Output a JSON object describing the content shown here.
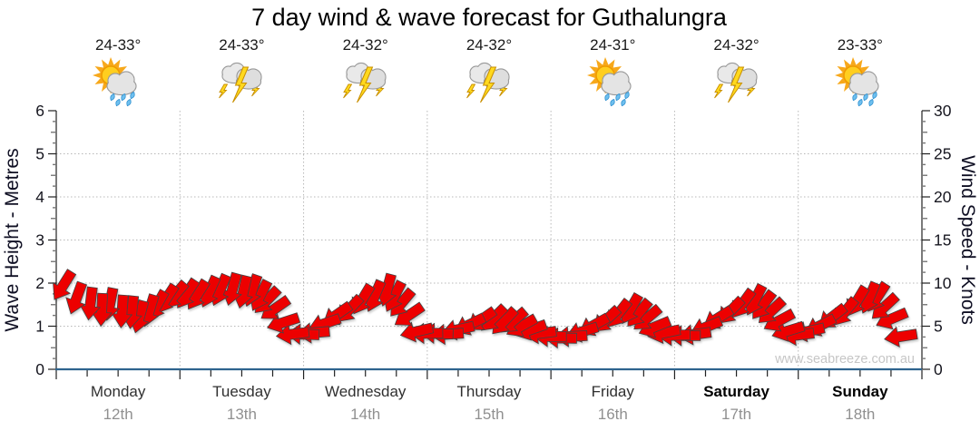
{
  "title": "7 day wind & wave forecast for Guthalungra",
  "watermark": "www.seabreeze.com.au",
  "colors": {
    "arrow": "#ED0000",
    "arrow_outline": "#444444",
    "baseline": "#2e648e",
    "grid": "#b8b8b8",
    "axis": "#222222",
    "tick_label": "#16161f",
    "axis_title": "#0f0f23",
    "weekday": "#303030",
    "weekday_weekend": "#000000",
    "date": "#909090",
    "watermark": "#c6c6c6",
    "temp": "#1a1a1a"
  },
  "days": [
    {
      "name": "Monday",
      "date": "12th",
      "temp": "24-33°",
      "icon": "sun-cloud-rain",
      "bold": false
    },
    {
      "name": "Tuesday",
      "date": "13th",
      "temp": "24-33°",
      "icon": "storm",
      "bold": false
    },
    {
      "name": "Wednesday",
      "date": "14th",
      "temp": "24-32°",
      "icon": "storm",
      "bold": false
    },
    {
      "name": "Thursday",
      "date": "15th",
      "temp": "24-32°",
      "icon": "storm",
      "bold": false
    },
    {
      "name": "Friday",
      "date": "16th",
      "temp": "24-31°",
      "icon": "sun-cloud-rain",
      "bold": false
    },
    {
      "name": "Saturday",
      "date": "17th",
      "temp": "24-32°",
      "icon": "storm",
      "bold": true
    },
    {
      "name": "Sunday",
      "date": "18th",
      "temp": "23-33°",
      "icon": "sun-cloud-rain",
      "bold": true
    }
  ],
  "chart_data": {
    "type": "wind-arrow-timeseries",
    "title": "7 day wind & wave forecast for Guthalungra",
    "y_left": {
      "label": "Wave Height - Metres",
      "min": 0,
      "max": 6,
      "ticks": [
        0,
        1,
        2,
        3,
        4,
        5,
        6
      ],
      "minor_step": 0.25
    },
    "y_right": {
      "label": "Wind Speed - Knots",
      "min": 0,
      "max": 30,
      "ticks": [
        0,
        5,
        10,
        15,
        20,
        25,
        30
      ],
      "minor_step": 1.25
    },
    "x_axis": {
      "hours_total": 168,
      "tick_every_hours": 6,
      "day_boundary_every_hours": 24
    },
    "wave_height_m_flat": 0.05,
    "wind_arrows": [
      [
        3,
        11.3,
        212
      ],
      [
        5,
        10.0,
        200
      ],
      [
        7,
        9.5,
        187
      ],
      [
        9,
        8.8,
        183
      ],
      [
        11,
        9.4,
        191
      ],
      [
        13,
        8.6,
        184
      ],
      [
        15,
        8.5,
        186
      ],
      [
        17,
        7.9,
        195
      ],
      [
        19,
        8.6,
        197
      ],
      [
        21,
        9.0,
        209
      ],
      [
        23,
        9.7,
        213
      ],
      [
        25,
        10.0,
        220
      ],
      [
        27,
        10.3,
        213
      ],
      [
        29,
        10.2,
        212
      ],
      [
        31,
        10.7,
        204
      ],
      [
        33,
        10.9,
        203
      ],
      [
        35,
        11.1,
        195
      ],
      [
        37,
        10.8,
        193
      ],
      [
        39,
        10.9,
        199
      ],
      [
        41,
        10.2,
        207
      ],
      [
        43,
        9.3,
        224
      ],
      [
        45,
        8.1,
        235
      ],
      [
        47,
        6.0,
        252
      ],
      [
        49,
        4.3,
        263
      ],
      [
        51,
        4.0,
        272
      ],
      [
        53,
        4.4,
        265
      ],
      [
        55,
        5.9,
        251
      ],
      [
        57,
        7.4,
        235
      ],
      [
        59,
        8.3,
        223
      ],
      [
        61,
        9.7,
        211
      ],
      [
        63,
        10.2,
        203
      ],
      [
        65,
        11.0,
        195
      ],
      [
        67,
        10.1,
        207
      ],
      [
        69,
        9.1,
        220
      ],
      [
        71,
        7.3,
        236
      ],
      [
        73,
        4.8,
        257
      ],
      [
        75,
        4.2,
        269
      ],
      [
        77,
        4.1,
        272
      ],
      [
        79,
        4.2,
        266
      ],
      [
        81,
        5.0,
        258
      ],
      [
        83,
        6.0,
        244
      ],
      [
        85,
        6.8,
        235
      ],
      [
        87,
        7.2,
        225
      ],
      [
        89,
        6.9,
        223
      ],
      [
        91,
        6.8,
        229
      ],
      [
        93,
        5.9,
        241
      ],
      [
        95,
        5.2,
        251
      ],
      [
        97,
        4.4,
        263
      ],
      [
        99,
        3.8,
        270
      ],
      [
        101,
        3.6,
        271
      ],
      [
        103,
        3.9,
        267
      ],
      [
        105,
        4.9,
        253
      ],
      [
        107,
        6.0,
        241
      ],
      [
        109,
        7.0,
        227
      ],
      [
        111,
        7.9,
        218
      ],
      [
        113,
        8.6,
        210
      ],
      [
        115,
        7.9,
        220
      ],
      [
        117,
        7.1,
        230
      ],
      [
        119,
        5.6,
        248
      ],
      [
        121,
        4.6,
        258
      ],
      [
        123,
        4.0,
        268
      ],
      [
        125,
        3.9,
        270
      ],
      [
        127,
        4.3,
        262
      ],
      [
        129,
        5.6,
        248
      ],
      [
        131,
        6.9,
        238
      ],
      [
        133,
        8.1,
        224
      ],
      [
        135,
        9.1,
        216
      ],
      [
        137,
        9.7,
        207
      ],
      [
        139,
        8.9,
        217
      ],
      [
        141,
        8.0,
        227
      ],
      [
        143,
        6.5,
        242
      ],
      [
        145,
        5.0,
        253
      ],
      [
        147,
        4.2,
        263
      ],
      [
        149,
        4.8,
        258
      ],
      [
        151,
        5.9,
        243
      ],
      [
        153,
        7.2,
        232
      ],
      [
        155,
        8.1,
        219
      ],
      [
        157,
        9.5,
        211
      ],
      [
        159,
        10.0,
        203
      ],
      [
        161,
        9.9,
        213
      ],
      [
        163,
        8.5,
        227
      ],
      [
        165,
        6.6,
        247
      ],
      [
        167,
        4.1,
        261
      ]
    ]
  }
}
